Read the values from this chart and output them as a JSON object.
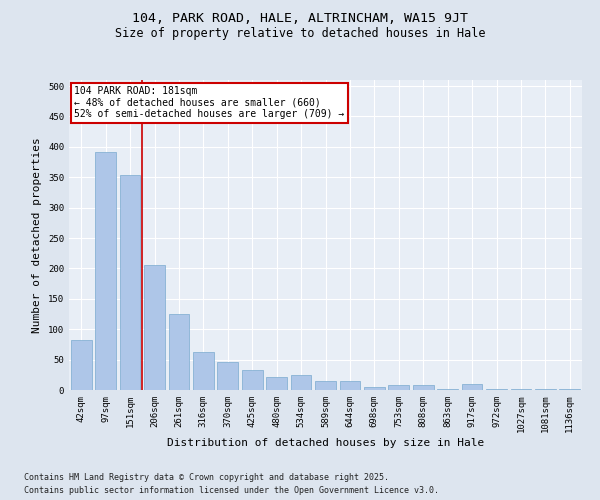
{
  "title1": "104, PARK ROAD, HALE, ALTRINCHAM, WA15 9JT",
  "title2": "Size of property relative to detached houses in Hale",
  "xlabel": "Distribution of detached houses by size in Hale",
  "ylabel": "Number of detached properties",
  "categories": [
    "42sqm",
    "97sqm",
    "151sqm",
    "206sqm",
    "261sqm",
    "316sqm",
    "370sqm",
    "425sqm",
    "480sqm",
    "534sqm",
    "589sqm",
    "644sqm",
    "698sqm",
    "753sqm",
    "808sqm",
    "863sqm",
    "917sqm",
    "972sqm",
    "1027sqm",
    "1081sqm",
    "1136sqm"
  ],
  "values": [
    82,
    392,
    353,
    205,
    125,
    63,
    46,
    33,
    22,
    25,
    15,
    15,
    5,
    8,
    8,
    1,
    10,
    1,
    1,
    1,
    1
  ],
  "bar_color": "#aec6e8",
  "bar_edge_color": "#7aaacf",
  "vline_x": 2.5,
  "vline_color": "#cc0000",
  "annotation_title": "104 PARK ROAD: 181sqm",
  "annotation_line1": "← 48% of detached houses are smaller (660)",
  "annotation_line2": "52% of semi-detached houses are larger (709) →",
  "annotation_box_facecolor": "#ffffff",
  "annotation_box_edgecolor": "#cc0000",
  "ylim": [
    0,
    510
  ],
  "yticks": [
    0,
    50,
    100,
    150,
    200,
    250,
    300,
    350,
    400,
    450,
    500
  ],
  "footer_line1": "Contains HM Land Registry data © Crown copyright and database right 2025.",
  "footer_line2": "Contains public sector information licensed under the Open Government Licence v3.0.",
  "bg_color": "#dde5ef",
  "plot_bg_color": "#e8eef6",
  "grid_color": "#ffffff",
  "title_fontsize": 9.5,
  "subtitle_fontsize": 8.5,
  "tick_fontsize": 6.5,
  "label_fontsize": 8,
  "annotation_fontsize": 7,
  "footer_fontsize": 6
}
